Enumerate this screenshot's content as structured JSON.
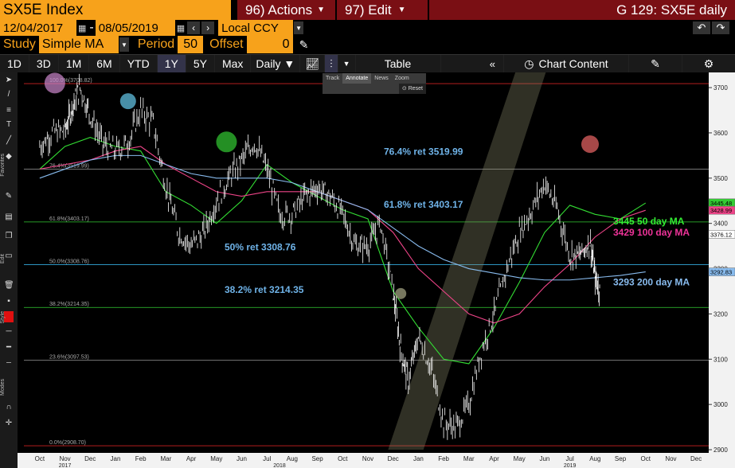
{
  "header": {
    "ticker": "SX5E Index",
    "actions_label": "96) Actions",
    "edit_label": "97) Edit",
    "chart_code": "G 129: SX5E daily"
  },
  "range": {
    "start_date": "12/04/2017",
    "end_date": "08/05/2019",
    "currency": "Local CCY"
  },
  "study": {
    "label": "Study",
    "value": "Simple MA",
    "period_label": "Period",
    "period_value": "50",
    "offset_label": "Offset",
    "offset_value": "0"
  },
  "toolbar": {
    "periods": [
      "1D",
      "3D",
      "1M",
      "6M",
      "YTD",
      "1Y",
      "5Y",
      "Max"
    ],
    "selected_period": "1Y",
    "frequency": "Daily ▼",
    "table_label": "Table",
    "chart_content_label": "Chart Content"
  },
  "float_toolbar": {
    "items": [
      "Track",
      "Annotate",
      "News",
      "Zoom"
    ],
    "reset": "Reset"
  },
  "left_toolbar": {
    "labels": [
      "Favorites",
      "Edit",
      "Style",
      "Modes"
    ]
  },
  "colors": {
    "price": "#ffffff",
    "ma50": "#33dd33",
    "ma100": "#ee4488",
    "ma200": "#88bbee",
    "fib_label_blue": "#6fb3e8",
    "label_green": "#33ee33",
    "label_pink": "#ee3399",
    "label_blue": "#88bbee",
    "background": "#000000",
    "accent": "#f7a21b"
  },
  "chart_data": {
    "type": "line",
    "title": "SX5E daily",
    "y_ticks": [
      2900,
      3000,
      3100,
      3200,
      3300,
      3400,
      3500,
      3600,
      3700
    ],
    "ylim": [
      2893,
      3730
    ],
    "x_months": [
      "Oct",
      "Nov",
      "Dec",
      "Jan",
      "Feb",
      "Mar",
      "Apr",
      "May",
      "Jun",
      "Jul",
      "Aug",
      "Sep",
      "Oct",
      "Nov",
      "Dec",
      "Jan",
      "Feb",
      "Mar",
      "Apr",
      "May",
      "Jun",
      "Jul",
      "Aug",
      "Sep",
      "Oct",
      "Nov",
      "Dec"
    ],
    "x_years": [
      "2017",
      "2018",
      "2019"
    ],
    "series": [
      {
        "name": "SX5E",
        "x": [
          0,
          0.5,
          1,
          1.3,
          1.6,
          2,
          2.5,
          3,
          3.5,
          4,
          4.5,
          5,
          5.5,
          6,
          6.5,
          7,
          7.5,
          8,
          8.5,
          9,
          9.5,
          10,
          10.5,
          11,
          11.5,
          12,
          12.5,
          13,
          13.5,
          14,
          14.3,
          14.6,
          15,
          15.5,
          16,
          16.5,
          17,
          17.5,
          18,
          18.5,
          19,
          19.5,
          20,
          20.5,
          21,
          21.4,
          21.8,
          22,
          22.2
        ],
        "values": [
          3570,
          3600,
          3605,
          3660,
          3700,
          3640,
          3575,
          3560,
          3580,
          3650,
          3620,
          3480,
          3380,
          3350,
          3380,
          3450,
          3500,
          3540,
          3580,
          3520,
          3420,
          3420,
          3460,
          3480,
          3460,
          3420,
          3350,
          3350,
          3400,
          3250,
          3120,
          3050,
          3150,
          3080,
          2960,
          2950,
          3000,
          3120,
          3200,
          3300,
          3380,
          3430,
          3490,
          3430,
          3330,
          3330,
          3360,
          3280,
          3250
        ]
      },
      {
        "name": "50 day MA",
        "x": [
          0,
          1,
          2,
          3,
          4,
          5,
          6,
          7,
          8,
          9,
          10,
          11,
          12,
          13,
          14,
          15,
          16,
          17,
          18,
          19,
          20,
          21,
          22,
          23,
          24
        ],
        "values": [
          3520,
          3570,
          3590,
          3570,
          3560,
          3470,
          3440,
          3400,
          3450,
          3530,
          3490,
          3460,
          3430,
          3410,
          3250,
          3170,
          3100,
          3090,
          3170,
          3270,
          3380,
          3440,
          3420,
          3410,
          3445
        ]
      },
      {
        "name": "100 day MA",
        "x": [
          0,
          1,
          2,
          3,
          4,
          5,
          6,
          7,
          8,
          9,
          10,
          11,
          12,
          13,
          14,
          15,
          16,
          17,
          18,
          19,
          20,
          21,
          22,
          23,
          24
        ],
        "values": [
          3520,
          3530,
          3540,
          3560,
          3570,
          3530,
          3500,
          3470,
          3460,
          3470,
          3470,
          3470,
          3450,
          3430,
          3380,
          3300,
          3250,
          3200,
          3180,
          3200,
          3260,
          3310,
          3370,
          3410,
          3429
        ]
      },
      {
        "name": "200 day MA",
        "x": [
          0,
          1,
          2,
          3,
          4,
          5,
          6,
          7,
          8,
          9,
          10,
          11,
          12,
          13,
          14,
          15,
          16,
          17,
          18,
          19,
          20,
          21,
          22,
          23,
          24
        ],
        "values": [
          3500,
          3520,
          3540,
          3550,
          3550,
          3530,
          3510,
          3500,
          3500,
          3500,
          3490,
          3470,
          3450,
          3430,
          3390,
          3350,
          3320,
          3300,
          3290,
          3280,
          3275,
          3275,
          3280,
          3285,
          3293
        ]
      }
    ],
    "fibonacci": [
      {
        "level_label": "100.0%(3708.82)",
        "value": 3708.82,
        "color": "#cc2222"
      },
      {
        "level_label": "76.4%(3519.99)",
        "value": 3519.99,
        "color": "#888888",
        "callout": "76.4% ret 3519.99"
      },
      {
        "level_label": "61.8%(3403.17)",
        "value": 3403.17,
        "color": "#33cc33",
        "callout": "61.8% ret 3403.17"
      },
      {
        "level_label": "50.0%(3308.76)",
        "value": 3308.76,
        "color": "#33aadd",
        "callout": "50% ret 3308.76"
      },
      {
        "level_label": "38.2%(3214.35)",
        "value": 3214.35,
        "color": "#33cc33",
        "callout": "38.2% ret 3214.35"
      },
      {
        "level_label": "23.6%(3097.53)",
        "value": 3097.53,
        "color": "#888888"
      },
      {
        "level_label": "0.0%(2908.70)",
        "value": 2908.7,
        "color": "#cc2222"
      }
    ],
    "right_labels": [
      {
        "text": "3445 50 day MA",
        "color": "#33ee33"
      },
      {
        "text": "3429 100 day MA",
        "color": "#ee3399"
      },
      {
        "text": "3293 200 day MA",
        "color": "#88bbee"
      }
    ],
    "axis_badges": [
      {
        "value": "3445.48",
        "price": 3445.48,
        "bg": "#33cc33"
      },
      {
        "value": "3428.99",
        "price": 3428.99,
        "bg": "#ee4488"
      },
      {
        "value": "3376.12",
        "price": 3376.12,
        "bg": "#ffffff"
      },
      {
        "value": "3292.83",
        "price": 3292.83,
        "bg": "#88bbee"
      }
    ],
    "grid": false
  }
}
